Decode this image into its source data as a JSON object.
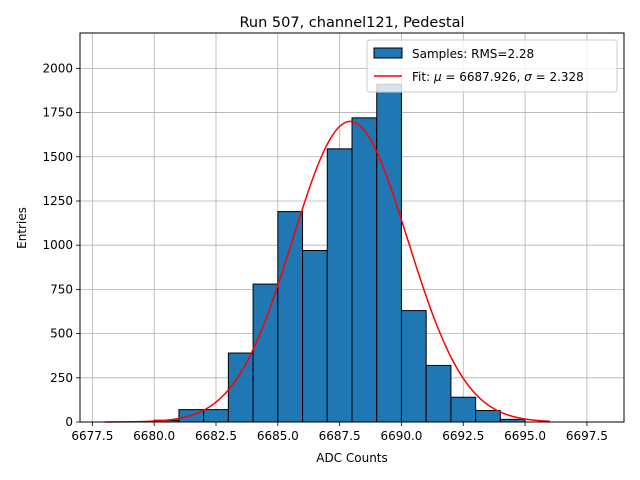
{
  "chart_data": {
    "type": "bar",
    "title": "Run 507, channel121, Pedestal",
    "xlabel": "ADC Counts",
    "ylabel": "Entries",
    "xlim": [
      6677.0,
      6699.0
    ],
    "ylim": [
      0,
      2200
    ],
    "grid": true,
    "legend_position": "top-right",
    "x_ticks": [
      {
        "value": 6677.5,
        "label": "6677.5"
      },
      {
        "value": 6680.0,
        "label": "6680.0"
      },
      {
        "value": 6682.5,
        "label": "6682.5"
      },
      {
        "value": 6685.0,
        "label": "6685.0"
      },
      {
        "value": 6687.5,
        "label": "6687.5"
      },
      {
        "value": 6690.0,
        "label": "6690.0"
      },
      {
        "value": 6692.5,
        "label": "6692.5"
      },
      {
        "value": 6695.0,
        "label": "6695.0"
      },
      {
        "value": 6697.5,
        "label": "6697.5"
      }
    ],
    "y_ticks": [
      {
        "value": 0,
        "label": "0"
      },
      {
        "value": 250,
        "label": "250"
      },
      {
        "value": 500,
        "label": "500"
      },
      {
        "value": 750,
        "label": "750"
      },
      {
        "value": 1000,
        "label": "1000"
      },
      {
        "value": 1250,
        "label": "1250"
      },
      {
        "value": 1500,
        "label": "1500"
      },
      {
        "value": 1750,
        "label": "1750"
      },
      {
        "value": 2000,
        "label": "2000"
      }
    ],
    "bin_edges": [
      6680,
      6681,
      6682,
      6683,
      6684,
      6685,
      6686,
      6687,
      6688,
      6689,
      6690,
      6691,
      6692,
      6693,
      6694,
      6695
    ],
    "series": [
      {
        "name": "Samples: RMS=2.28",
        "kind": "histogram",
        "color": "#1f77b4",
        "edgecolor": "#000000",
        "values": [
          10,
          70,
          70,
          390,
          780,
          1190,
          970,
          1545,
          1720,
          1910,
          630,
          320,
          140,
          65,
          15
        ]
      },
      {
        "name": "Fit: μ = 6687.926, σ = 2.328",
        "legend_prefix": "Fit: ",
        "legend_mu": "μ",
        "legend_eq1": " = 6687.926, ",
        "legend_sigma": "σ",
        "legend_eq2": " = 2.328",
        "kind": "line",
        "color": "#ff0000",
        "mu": 6687.926,
        "sigma": 2.328,
        "amplitude": 1700,
        "x_range": [
          6678,
          6696
        ]
      }
    ]
  }
}
